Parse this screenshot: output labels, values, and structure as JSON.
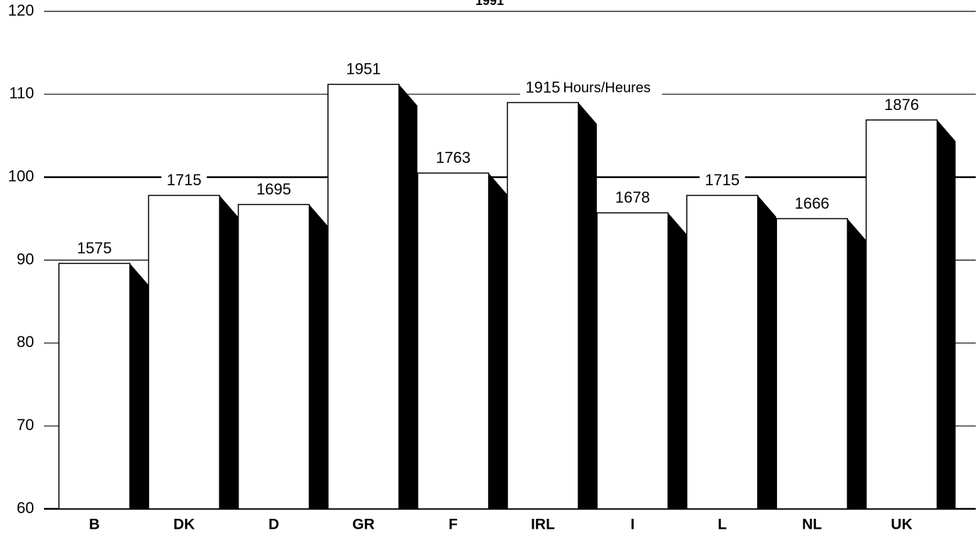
{
  "chart_data": {
    "type": "bar",
    "title": "1991",
    "categories": [
      "B",
      "DK",
      "D",
      "GR",
      "F",
      "IRL",
      "I",
      "L",
      "NL",
      "UK"
    ],
    "values": [
      89.6,
      97.8,
      96.7,
      111.2,
      100.5,
      109.0,
      95.7,
      97.8,
      95.0,
      106.9
    ],
    "data_labels": [
      1575,
      1715,
      1695,
      1951,
      1763,
      1915,
      1678,
      1715,
      1666,
      1876
    ],
    "annotation": "Hours/Heures",
    "color": "#ffffff",
    "ylim": [
      60,
      120
    ],
    "yticks": [
      60,
      70,
      80,
      90,
      100,
      110,
      120
    ],
    "grid": true
  }
}
